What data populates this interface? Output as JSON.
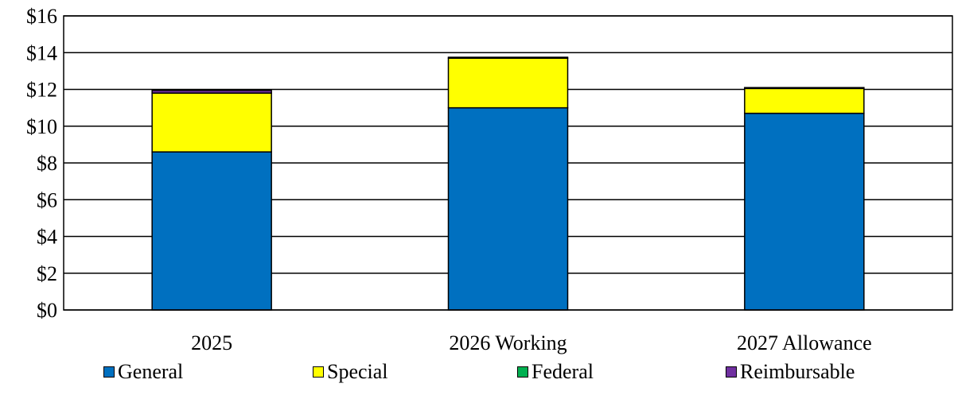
{
  "chart_data": {
    "type": "bar",
    "stacked": true,
    "categories": [
      "2025",
      "2026 Working",
      "2027 Allowance"
    ],
    "series": [
      {
        "name": "General",
        "color": "#0070C0",
        "values": [
          8.6,
          11.0,
          10.7
        ]
      },
      {
        "name": "Special",
        "color": "#FFFF00",
        "values": [
          3.2,
          2.7,
          1.35
        ]
      },
      {
        "name": "Federal",
        "color": "#00B050",
        "values": [
          0.0,
          0.0,
          0.0
        ]
      },
      {
        "name": "Reimbursable",
        "color": "#7030A0",
        "values": [
          0.15,
          0.05,
          0.05
        ]
      }
    ],
    "y_ticks": [
      "$0",
      "$2",
      "$4",
      "$6",
      "$8",
      "$10",
      "$12",
      "$14",
      "$16"
    ],
    "ylim": [
      0,
      16
    ],
    "grid": true,
    "legend_position": "bottom"
  }
}
